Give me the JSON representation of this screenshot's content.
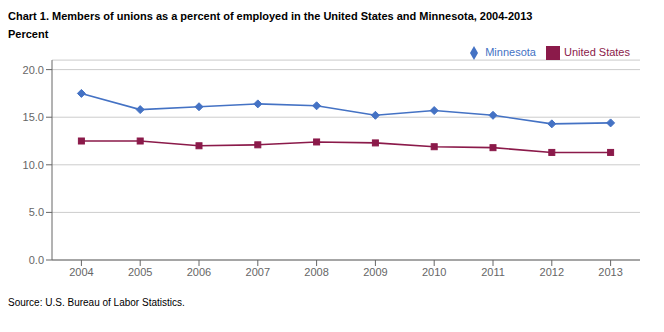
{
  "chart_data": {
    "type": "line",
    "title": "Chart 1. Members of unions as a percent of employed in the United States and Minnesota, 2004-2013",
    "ylabel": "Percent",
    "annotations": [
      "Source: U.S. Bureau of Labor Statistics."
    ],
    "x": [
      2004,
      2005,
      2006,
      2007,
      2008,
      2009,
      2010,
      2011,
      2012,
      2013
    ],
    "series": [
      {
        "name": "United States",
        "color": "#8B1A4A",
        "marker": "square",
        "values": [
          12.5,
          12.5,
          12.0,
          12.1,
          12.4,
          12.3,
          11.9,
          11.8,
          11.3,
          11.3
        ]
      },
      {
        "name": "Minnesota",
        "color": "#4472C4",
        "marker": "diamond",
        "values": [
          17.5,
          15.8,
          16.1,
          16.4,
          16.2,
          15.2,
          15.7,
          15.2,
          14.3,
          14.4
        ]
      }
    ],
    "xlim": [
      2003.5,
      2013.5
    ],
    "xticks": [
      2004,
      2005,
      2006,
      2007,
      2008,
      2009,
      2010,
      2011,
      2012,
      2013
    ],
    "ylim": [
      0,
      21.0
    ],
    "yticks": [
      {
        "value": 0.0,
        "label": "0.0"
      },
      {
        "value": 5.0,
        "label": "5.0"
      },
      {
        "value": 10.0,
        "label": "10.0"
      },
      {
        "value": 15.0,
        "label": "15.0"
      },
      {
        "value": 20.0,
        "label": "20.0"
      }
    ],
    "grid": "y",
    "legend": "upper right"
  }
}
